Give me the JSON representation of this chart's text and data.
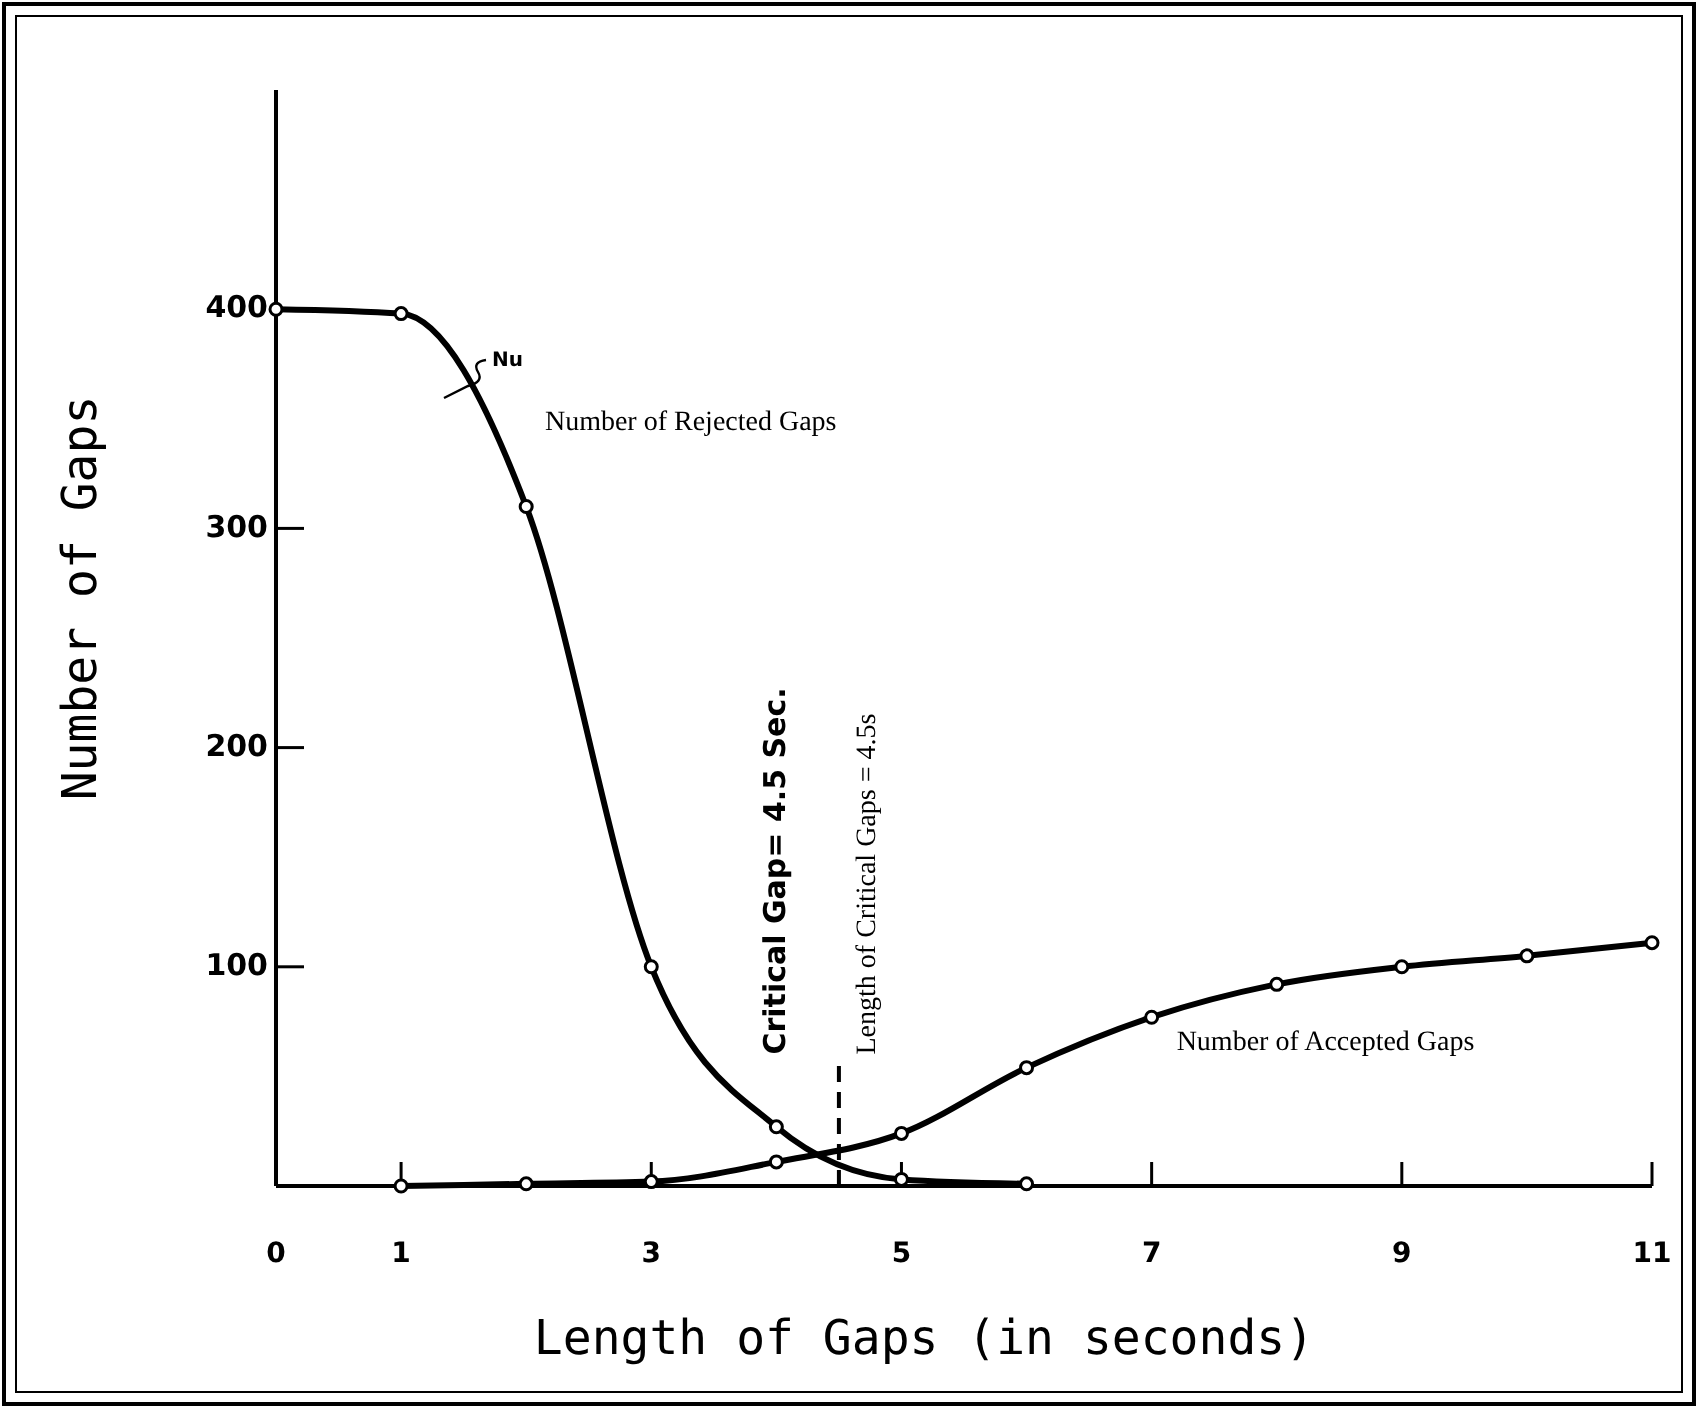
{
  "chart_data": {
    "type": "line",
    "xlabel": "Length of Gaps (in seconds)",
    "ylabel": "Number of Gaps",
    "series": [
      {
        "name": "Number of Rejected Gaps",
        "color": "#000000",
        "x": [
          0,
          1,
          2,
          3,
          4,
          5,
          6
        ],
        "values": [
          400,
          398,
          310,
          100,
          27,
          3,
          1
        ]
      },
      {
        "name": "Number of Accepted Gaps",
        "color": "#000000",
        "x": [
          1,
          2,
          3,
          4,
          5,
          6,
          7,
          8,
          9,
          10,
          11
        ],
        "values": [
          0,
          1,
          2,
          11,
          24,
          54,
          77,
          92,
          100,
          105,
          111
        ]
      }
    ],
    "xlim": [
      0,
      11
    ],
    "xticks": [
      0,
      1,
      3,
      5,
      7,
      9,
      11
    ],
    "ylim": [
      0,
      500
    ],
    "yticks": [
      100,
      200,
      300,
      400
    ],
    "ref_lines": [
      {
        "axis": "x",
        "value": 4.5,
        "label": "Critical Gap= 4.5 Sec.",
        "line_style": "dashed"
      }
    ],
    "annotations": [
      "Nu",
      "Length of Critical Gaps = 4.5s"
    ],
    "marker": "circle",
    "grid": false
  }
}
